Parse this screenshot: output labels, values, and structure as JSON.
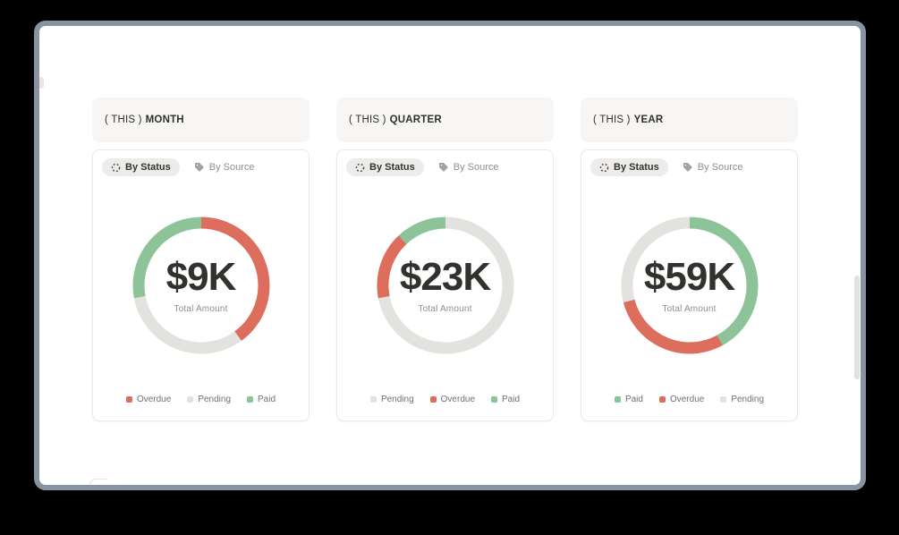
{
  "cards": [
    {
      "header": {
        "prefix": "( THIS )",
        "period": "MONTH"
      },
      "tabs": {
        "by_status": "By Status",
        "by_source": "By Source"
      }
    },
    {
      "header": {
        "prefix": "( THIS )",
        "period": "QUARTER"
      },
      "tabs": {
        "by_status": "By Status",
        "by_source": "By Source"
      }
    },
    {
      "header": {
        "prefix": "( THIS )",
        "period": "YEAR"
      },
      "tabs": {
        "by_status": "By Status",
        "by_source": "By Source"
      }
    }
  ],
  "chart_data": [
    {
      "type": "pie",
      "title": "( THIS ) MONTH — By Status",
      "center_label": "$9K",
      "center_sublabel": "Total Amount",
      "legend_position": "bottom",
      "segments": [
        {
          "label": "Overdue",
          "percent": 40,
          "color": "#dd6d5c"
        },
        {
          "label": "Pending",
          "percent": 32,
          "color": "#e4e2df"
        },
        {
          "label": "Paid",
          "percent": 28,
          "color": "#8cc398"
        }
      ]
    },
    {
      "type": "pie",
      "title": "( THIS ) QUARTER — By Status",
      "center_label": "$23K",
      "center_sublabel": "Total Amount",
      "legend_position": "bottom",
      "segments": [
        {
          "label": "Pending",
          "percent": 72,
          "color": "#e4e2df"
        },
        {
          "label": "Overdue",
          "percent": 16,
          "color": "#dd6d5c"
        },
        {
          "label": "Paid",
          "percent": 12,
          "color": "#8cc398"
        }
      ]
    },
    {
      "type": "pie",
      "title": "( THIS ) YEAR — By Status",
      "center_label": "$59K",
      "center_sublabel": "Total Amount",
      "legend_position": "bottom",
      "segments": [
        {
          "label": "Paid",
          "percent": 42,
          "color": "#8cc398"
        },
        {
          "label": "Overdue",
          "percent": 29,
          "color": "#dd6d5c"
        },
        {
          "label": "Pending",
          "percent": 29,
          "color": "#e4e2df"
        }
      ]
    }
  ],
  "colors": {
    "window_border": "#8893a1",
    "card_header_bg": "#f7f6f4",
    "active_tab_bg": "#edecea",
    "overdue": "#dd6d5c",
    "pending": "#e4e2df",
    "paid": "#8cc398"
  }
}
